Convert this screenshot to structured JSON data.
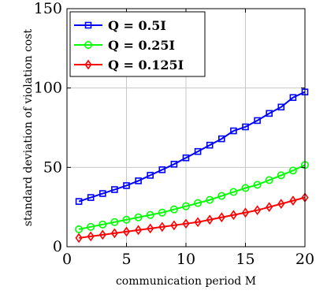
{
  "chart_data": {
    "type": "line",
    "title": "",
    "xlabel": "communication period M",
    "ylabel": "standard deviation of violation cost",
    "xlim": [
      0,
      20
    ],
    "ylim": [
      0,
      150
    ],
    "xticks": [
      0,
      5,
      10,
      15,
      20
    ],
    "yticks": [
      0,
      50,
      100,
      150
    ],
    "grid": true,
    "legend_position": "top-left",
    "x": [
      1,
      2,
      3,
      4,
      5,
      6,
      7,
      8,
      9,
      10,
      11,
      12,
      13,
      14,
      15,
      16,
      17,
      18,
      19,
      20
    ],
    "series": [
      {
        "name": "Q = 0.5I",
        "color": "#0000ff",
        "marker": "square",
        "values": [
          28.5,
          31,
          33.5,
          36,
          38.5,
          41.5,
          45,
          48.5,
          52,
          56,
          60,
          64,
          68,
          73,
          75.5,
          79.5,
          84,
          88,
          94,
          97.5
        ]
      },
      {
        "name": "Q = 0.25I",
        "color": "#00ff00",
        "marker": "circle",
        "values": [
          11,
          12.5,
          14,
          15.5,
          17,
          18.5,
          20,
          21.5,
          23.5,
          25.5,
          27.5,
          29.5,
          32,
          34.5,
          37,
          39,
          42,
          45,
          48,
          51.5
        ]
      },
      {
        "name": "Q = 0.125I",
        "color": "#ff0000",
        "marker": "diamond",
        "values": [
          5.5,
          6.5,
          7.5,
          8.5,
          9.5,
          10.5,
          11.5,
          12.5,
          13.5,
          14.5,
          15.5,
          17,
          18.5,
          20,
          21.5,
          23,
          25,
          27,
          29,
          31
        ]
      }
    ]
  }
}
